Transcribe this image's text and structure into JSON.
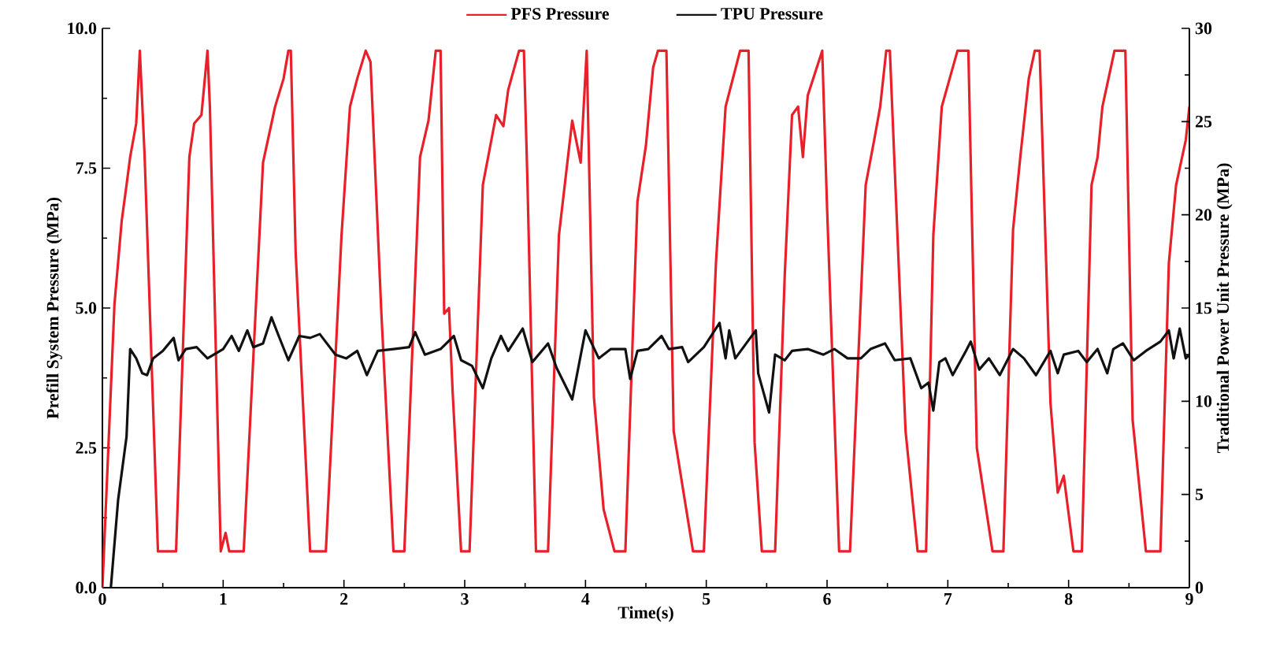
{
  "chart_data": {
    "type": "line",
    "xlabel": "Time(s)",
    "ylabel": "Prefill System Pressure (MPa)",
    "y2label": "Traditional Power Unit Pressure (MPa)",
    "xlim": [
      0,
      9
    ],
    "xticks": [
      0,
      1,
      2,
      3,
      4,
      5,
      6,
      7,
      8,
      9
    ],
    "ylim": [
      0,
      10
    ],
    "yticks": [
      {
        "value": 0,
        "label": "0.0"
      },
      {
        "value": 2.5,
        "label": "2.5"
      },
      {
        "value": 5,
        "label": "5.0"
      },
      {
        "value": 7.5,
        "label": "7.5"
      },
      {
        "value": 10,
        "label": "10.0"
      }
    ],
    "y2lim": [
      0,
      30
    ],
    "y2ticks": [
      0,
      5,
      10,
      15,
      20,
      25,
      30
    ],
    "legend": "top",
    "series": [
      {
        "name": "PFS Pressure",
        "color": "#e8202a",
        "x": [
          0,
          0.1,
          0.16,
          0.2,
          0.23,
          0.28,
          0.31,
          0.35,
          0.46,
          0.61,
          0.72,
          0.76,
          0.82,
          0.87,
          0.89,
          0.98,
          1.02,
          1.05,
          1.17,
          1.33,
          1.43,
          1.5,
          1.54,
          1.56,
          1.6,
          1.72,
          1.85,
          1.98,
          2.05,
          2.11,
          2.18,
          2.22,
          2.31,
          2.41,
          2.5,
          2.63,
          2.7,
          2.76,
          2.8,
          2.83,
          2.87,
          2.9,
          2.97,
          3.04,
          3.15,
          3.26,
          3.32,
          3.36,
          3.45,
          3.49,
          3.52,
          3.59,
          3.69,
          3.78,
          3.89,
          3.96,
          4.01,
          4.07,
          4.15,
          4.24,
          4.33,
          4.43,
          4.5,
          4.56,
          4.6,
          4.67,
          4.73,
          4.89,
          4.98,
          5.08,
          5.16,
          5.28,
          5.35,
          5.4,
          5.46,
          5.57,
          5.65,
          5.71,
          5.76,
          5.8,
          5.84,
          5.96,
          6.0,
          6.1,
          6.19,
          6.32,
          6.39,
          6.44,
          6.49,
          6.52,
          6.65,
          6.75,
          6.82,
          6.88,
          6.95,
          7.08,
          7.17,
          7.24,
          7.37,
          7.46,
          7.54,
          7.6,
          7.67,
          7.72,
          7.76,
          7.85,
          7.91,
          7.96,
          8.04,
          8.11,
          8.19,
          8.24,
          8.28,
          8.38,
          8.47,
          8.53,
          8.64,
          8.76,
          8.83,
          8.89,
          8.97,
          9.0
        ],
        "values": [
          0,
          5.07,
          6.56,
          7.2,
          7.7,
          8.3,
          9.6,
          7.7,
          0.65,
          0.65,
          7.7,
          8.3,
          8.45,
          9.6,
          8.6,
          0.65,
          0.98,
          0.65,
          0.65,
          7.6,
          8.6,
          9.1,
          9.6,
          9.6,
          6.0,
          0.65,
          0.65,
          6.3,
          8.6,
          9.1,
          9.6,
          9.4,
          4.9,
          0.65,
          0.65,
          7.7,
          8.35,
          9.6,
          9.6,
          4.9,
          5.0,
          3.5,
          0.65,
          0.65,
          7.2,
          8.45,
          8.25,
          8.9,
          9.6,
          9.6,
          7.2,
          0.65,
          0.65,
          6.3,
          8.35,
          7.6,
          9.6,
          3.4,
          1.4,
          0.65,
          0.65,
          6.9,
          7.9,
          9.3,
          9.6,
          9.6,
          2.8,
          0.65,
          0.65,
          5.8,
          8.6,
          9.6,
          9.6,
          2.6,
          0.65,
          0.65,
          5.6,
          8.45,
          8.6,
          7.7,
          8.8,
          9.6,
          6.8,
          0.65,
          0.65,
          7.2,
          8.0,
          8.6,
          9.6,
          9.6,
          2.8,
          0.65,
          0.65,
          6.3,
          8.6,
          9.6,
          9.6,
          2.5,
          0.65,
          0.65,
          6.4,
          7.7,
          9.1,
          9.6,
          9.6,
          3.3,
          1.7,
          2.0,
          0.65,
          0.65,
          7.2,
          7.7,
          8.6,
          9.6,
          9.6,
          3.0,
          0.65,
          0.65,
          5.8,
          7.2,
          8.0,
          8.6
        ]
      },
      {
        "name": "TPU Pressure",
        "color": "#111111",
        "axis": "y2",
        "x": [
          0.07,
          0.13,
          0.2,
          0.23,
          0.28,
          0.33,
          0.37,
          0.42,
          0.5,
          0.59,
          0.63,
          0.69,
          0.78,
          0.87,
          1.0,
          1.07,
          1.13,
          1.2,
          1.25,
          1.33,
          1.4,
          1.46,
          1.54,
          1.63,
          1.72,
          1.8,
          1.93,
          2.02,
          2.11,
          2.19,
          2.28,
          2.41,
          2.54,
          2.59,
          2.67,
          2.8,
          2.91,
          2.97,
          3.06,
          3.15,
          3.22,
          3.3,
          3.36,
          3.48,
          3.56,
          3.69,
          3.76,
          3.89,
          4.0,
          4.11,
          4.21,
          4.33,
          4.37,
          4.43,
          4.52,
          4.63,
          4.69,
          4.8,
          4.85,
          4.98,
          5.11,
          5.16,
          5.19,
          5.24,
          5.41,
          5.43,
          5.52,
          5.57,
          5.65,
          5.71,
          5.84,
          5.97,
          6.06,
          6.17,
          6.28,
          6.36,
          6.48,
          6.56,
          6.69,
          6.78,
          6.84,
          6.88,
          6.93,
          6.98,
          7.04,
          7.15,
          7.19,
          7.26,
          7.34,
          7.43,
          7.54,
          7.63,
          7.73,
          7.85,
          7.91,
          7.96,
          8.08,
          8.15,
          8.24,
          8.32,
          8.37,
          8.45,
          8.54,
          8.64,
          8.76,
          8.83,
          8.87,
          8.92,
          8.97,
          9.0
        ],
        "values": [
          0,
          4.7,
          8.1,
          12.8,
          12.3,
          11.5,
          11.4,
          12.3,
          12.7,
          13.4,
          12.2,
          12.8,
          12.9,
          12.3,
          12.8,
          13.5,
          12.7,
          13.8,
          12.9,
          13.1,
          14.5,
          13.5,
          12.2,
          13.5,
          13.4,
          13.6,
          12.5,
          12.3,
          12.7,
          11.4,
          12.7,
          12.8,
          12.9,
          13.7,
          12.5,
          12.8,
          13.5,
          12.2,
          11.9,
          10.7,
          12.3,
          13.5,
          12.7,
          13.9,
          12.1,
          13.1,
          11.8,
          10.1,
          13.8,
          12.3,
          12.8,
          12.8,
          11.2,
          12.7,
          12.8,
          13.5,
          12.8,
          12.9,
          12.1,
          12.9,
          14.2,
          12.3,
          13.8,
          12.3,
          13.8,
          11.5,
          9.4,
          12.5,
          12.2,
          12.7,
          12.8,
          12.5,
          12.8,
          12.3,
          12.3,
          12.8,
          13.1,
          12.2,
          12.3,
          10.7,
          11.0,
          9.5,
          12.1,
          12.3,
          11.4,
          12.7,
          13.2,
          11.7,
          12.3,
          11.4,
          12.8,
          12.3,
          11.4,
          12.7,
          11.5,
          12.5,
          12.7,
          12.1,
          12.8,
          11.5,
          12.8,
          13.1,
          12.2,
          12.7,
          13.2,
          13.8,
          12.3,
          13.9,
          12.3,
          12.5
        ]
      }
    ]
  }
}
